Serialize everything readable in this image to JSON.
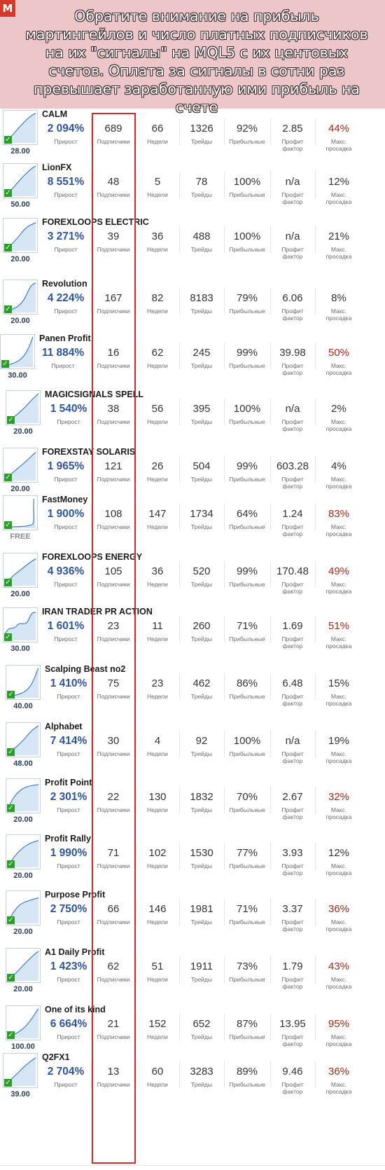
{
  "banner": {
    "text": "Обратите внимание на прибыль мартингейлов и число платных подписчиков на их \"сигналы\" на MQL5 с их центовых счетов. Оплата за сигналы в сотни раз превышает заработанную ими прибыль на счете",
    "logo": "M"
  },
  "labels": {
    "gain": "Прирост",
    "subs": "Подписчики",
    "weeks": "Недели",
    "trades": "Трейды",
    "profitable": "Прибыльные",
    "pf": "Профит фактор",
    "dd": "Макс. просадка"
  },
  "colors": {
    "banner_bg": "#ecc6c9",
    "gain": "#2f5597",
    "drawdown_high": "#9b2a1a",
    "highlight_box": "#d62a2a",
    "check": "#2a9d2a"
  },
  "signals": [
    {
      "name": "CALM",
      "price": "28.00",
      "gain": "2 094%",
      "subs": "689",
      "weeks": "66",
      "trades": "1326",
      "profitable": "92%",
      "pf": "2.85",
      "dd": "44%"
    },
    {
      "name": "LionFX",
      "price": "50.00",
      "gain": "8 551%",
      "subs": "48",
      "weeks": "5",
      "trades": "78",
      "profitable": "100%",
      "pf": "n/a",
      "dd": "12%"
    },
    {
      "name": "FOREXLOOPS ELECTRIC",
      "price": "20.00",
      "gain": "3 271%",
      "subs": "39",
      "weeks": "36",
      "trades": "488",
      "profitable": "100%",
      "pf": "n/a",
      "dd": "21%"
    },
    {
      "name": "Revolution",
      "price": "20.00",
      "gain": "4 224%",
      "subs": "167",
      "weeks": "82",
      "trades": "8183",
      "profitable": "79%",
      "pf": "6.06",
      "dd": "8%"
    },
    {
      "name": "Panen Profit",
      "price": "30.00",
      "gain": "11 884%",
      "subs": "16",
      "weeks": "62",
      "trades": "245",
      "profitable": "99%",
      "pf": "39.98",
      "dd": "50%"
    },
    {
      "name": "MAGICSIGNALS SPELL",
      "price": "20.00",
      "gain": "1 540%",
      "subs": "38",
      "weeks": "56",
      "trades": "395",
      "profitable": "100%",
      "pf": "n/a",
      "dd": "2%"
    },
    {
      "name": "FOREXSTAY SOLARIS",
      "price": "20.00",
      "gain": "1 965%",
      "subs": "121",
      "weeks": "26",
      "trades": "504",
      "profitable": "99%",
      "pf": "603.28",
      "dd": "4%"
    },
    {
      "name": "FastMoney",
      "price": "FREE",
      "gain": "1 900%",
      "subs": "108",
      "weeks": "147",
      "trades": "1734",
      "profitable": "64%",
      "pf": "1.24",
      "dd": "83%"
    },
    {
      "name": "FOREXLOOPS ENERGY",
      "price": "20.00",
      "gain": "4 936%",
      "subs": "105",
      "weeks": "36",
      "trades": "520",
      "profitable": "99%",
      "pf": "170.48",
      "dd": "49%"
    },
    {
      "name": "IRAN TRADER PR ACTION",
      "price": "30.00",
      "gain": "1 601%",
      "subs": "23",
      "weeks": "11",
      "trades": "260",
      "profitable": "71%",
      "pf": "1.69",
      "dd": "51%"
    },
    {
      "name": "Scalping Beast no2",
      "price": "40.00",
      "gain": "1 410%",
      "subs": "75",
      "weeks": "23",
      "trades": "462",
      "profitable": "86%",
      "pf": "6.48",
      "dd": "15%"
    },
    {
      "name": "Alphabet",
      "price": "48.00",
      "gain": "7 414%",
      "subs": "30",
      "weeks": "4",
      "trades": "92",
      "profitable": "100%",
      "pf": "n/a",
      "dd": "19%"
    },
    {
      "name": "Profit Point",
      "price": "20.00",
      "gain": "2 301%",
      "subs": "22",
      "weeks": "130",
      "trades": "1832",
      "profitable": "70%",
      "pf": "2.67",
      "dd": "32%"
    },
    {
      "name": "Profit Rally",
      "price": "20.00",
      "gain": "1 990%",
      "subs": "71",
      "weeks": "102",
      "trades": "1530",
      "profitable": "77%",
      "pf": "3.93",
      "dd": "12%"
    },
    {
      "name": "Purpose Profit",
      "price": "20.00",
      "gain": "2 750%",
      "subs": "66",
      "weeks": "146",
      "trades": "1981",
      "profitable": "71%",
      "pf": "3.37",
      "dd": "36%"
    },
    {
      "name": "A1 Daily Profit",
      "price": "20.00",
      "gain": "1 423%",
      "subs": "62",
      "weeks": "51",
      "trades": "1911",
      "profitable": "73%",
      "pf": "1.79",
      "dd": "43%"
    },
    {
      "name": "One of its kind",
      "price": "100.00",
      "gain": "6 664%",
      "subs": "21",
      "weeks": "152",
      "trades": "652",
      "profitable": "87%",
      "pf": "13.95",
      "dd": "95%"
    },
    {
      "name": "Q2FX1",
      "price": "39.00",
      "gain": "2 704%",
      "subs": "13",
      "weeks": "60",
      "trades": "3283",
      "profitable": "89%",
      "pf": "9.46",
      "dd": "36%"
    }
  ]
}
